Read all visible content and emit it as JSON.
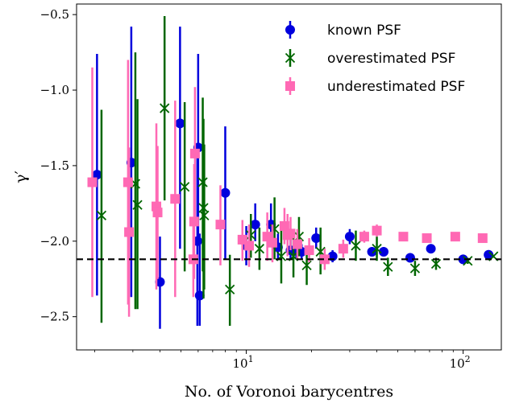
{
  "chart_data": {
    "type": "scatter",
    "title": "",
    "xlabel": "No. of Voronoi barycentres",
    "ylabel": "γ′",
    "xscale": "log",
    "xlim": [
      1.65,
      150
    ],
    "ylim": [
      -2.72,
      -0.43
    ],
    "yticks": [
      {
        "value": -0.5,
        "label": "−0.5"
      },
      {
        "value": -1.0,
        "label": "−1.0"
      },
      {
        "value": -1.5,
        "label": "−1.5"
      },
      {
        "value": -2.0,
        "label": "−2.0"
      },
      {
        "value": -2.5,
        "label": "−2.5"
      }
    ],
    "xticks": [
      {
        "value": 10,
        "base": "10",
        "exp": "1"
      },
      {
        "value": 100,
        "base": "10",
        "exp": "2"
      }
    ],
    "reference_line": {
      "y": -2.12,
      "style": "dashed",
      "color": "#000000"
    },
    "legend": {
      "position": "top-right"
    },
    "grid": false,
    "series": [
      {
        "name": "known PSF",
        "marker": "circle",
        "color": "#0000dd",
        "points": [
          {
            "x": 2.05,
            "y": -1.56,
            "lo": -2.36,
            "hi": -0.76
          },
          {
            "x": 2.95,
            "y": -1.48,
            "lo": -2.37,
            "hi": -0.58
          },
          {
            "x": 4.0,
            "y": -2.27,
            "lo": -2.58,
            "hi": -1.97
          },
          {
            "x": 4.95,
            "y": -1.22,
            "lo": -2.05,
            "hi": -0.58
          },
          {
            "x": 5.95,
            "y": -2.0,
            "lo": -2.56,
            "hi": -1.44
          },
          {
            "x": 6.0,
            "y": -1.38,
            "lo": -2.02,
            "hi": -0.76
          },
          {
            "x": 6.1,
            "y": -2.36,
            "lo": -2.56,
            "hi": -1.95
          },
          {
            "x": 8.0,
            "y": -1.68,
            "lo": -2.12,
            "hi": -1.24
          },
          {
            "x": 10.0,
            "y": -2.03,
            "lo": -2.16,
            "hi": -1.9
          },
          {
            "x": 11.0,
            "y": -1.89,
            "lo": -2.0,
            "hi": -1.75
          },
          {
            "x": 13.0,
            "y": -1.89,
            "lo": -2.0,
            "hi": -1.75
          },
          {
            "x": 14.0,
            "y": -2.04,
            "lo": -2.12,
            "hi": -1.95
          },
          {
            "x": 16.0,
            "y": -2.06,
            "lo": -2.12,
            "hi": -1.99
          },
          {
            "x": 17.0,
            "y": -2.06,
            "lo": -2.12,
            "hi": -1.99
          },
          {
            "x": 18.0,
            "y": -2.07,
            "lo": -2.12,
            "hi": -2.02
          },
          {
            "x": 21.0,
            "y": -1.98,
            "lo": -2.05,
            "hi": -1.91
          },
          {
            "x": 25.0,
            "y": -2.1,
            "lo": -2.14,
            "hi": -2.06
          },
          {
            "x": 30.0,
            "y": -1.97,
            "lo": -2.02,
            "hi": -1.92
          },
          {
            "x": 38.0,
            "y": -2.07,
            "lo": -2.1,
            "hi": -2.04
          },
          {
            "x": 43.0,
            "y": -2.07,
            "lo": -2.1,
            "hi": -2.04
          },
          {
            "x": 57.0,
            "y": -2.11,
            "lo": -2.13,
            "hi": -2.09
          },
          {
            "x": 71.0,
            "y": -2.05,
            "lo": -2.08,
            "hi": -2.02
          },
          {
            "x": 100.0,
            "y": -2.12,
            "lo": -2.13,
            "hi": -2.11
          },
          {
            "x": 131.0,
            "y": -2.09,
            "lo": -2.1,
            "hi": -2.08
          }
        ]
      },
      {
        "name": "overestimated PSF",
        "marker": "x",
        "color": "#006600",
        "points": [
          {
            "x": 2.15,
            "y": -1.83,
            "lo": -2.54,
            "hi": -1.13
          },
          {
            "x": 3.08,
            "y": -1.62,
            "lo": -2.45,
            "hi": -0.75
          },
          {
            "x": 3.15,
            "y": -1.76,
            "lo": -2.45,
            "hi": -1.06
          },
          {
            "x": 4.2,
            "y": -1.12,
            "lo": -1.73,
            "hi": -0.51
          },
          {
            "x": 5.2,
            "y": -1.64,
            "lo": -2.2,
            "hi": -1.08
          },
          {
            "x": 6.3,
            "y": -1.61,
            "lo": -2.2,
            "hi": -1.05
          },
          {
            "x": 6.35,
            "y": -1.78,
            "lo": -2.38,
            "hi": -1.19
          },
          {
            "x": 6.4,
            "y": -1.83,
            "lo": -2.32,
            "hi": -1.36
          },
          {
            "x": 8.4,
            "y": -2.32,
            "lo": -2.56,
            "hi": -2.09
          },
          {
            "x": 10.5,
            "y": -1.96,
            "lo": -2.11,
            "hi": -1.82
          },
          {
            "x": 11.5,
            "y": -2.05,
            "lo": -2.19,
            "hi": -1.91
          },
          {
            "x": 13.5,
            "y": -1.92,
            "lo": -2.12,
            "hi": -1.71
          },
          {
            "x": 14.5,
            "y": -2.1,
            "lo": -2.28,
            "hi": -1.92
          },
          {
            "x": 16.5,
            "y": -2.1,
            "lo": -2.24,
            "hi": -1.97
          },
          {
            "x": 17.5,
            "y": -1.97,
            "lo": -2.1,
            "hi": -1.84
          },
          {
            "x": 19.0,
            "y": -2.16,
            "lo": -2.29,
            "hi": -2.03
          },
          {
            "x": 22.0,
            "y": -2.07,
            "lo": -2.22,
            "hi": -1.91
          },
          {
            "x": 32.0,
            "y": -2.03,
            "lo": -2.13,
            "hi": -1.93
          },
          {
            "x": 40.0,
            "y": -2.05,
            "lo": -2.13,
            "hi": -1.97
          },
          {
            "x": 45.0,
            "y": -2.17,
            "lo": -2.23,
            "hi": -2.11
          },
          {
            "x": 60.0,
            "y": -2.18,
            "lo": -2.23,
            "hi": -2.13
          },
          {
            "x": 75.0,
            "y": -2.15,
            "lo": -2.19,
            "hi": -2.11
          },
          {
            "x": 105.0,
            "y": -2.13,
            "lo": -2.15,
            "hi": -2.11
          },
          {
            "x": 138.0,
            "y": -2.1,
            "lo": -2.11,
            "hi": -2.09
          }
        ]
      },
      {
        "name": "underestimated PSF",
        "marker": "square",
        "color": "#ff69b4",
        "points": [
          {
            "x": 1.95,
            "y": -1.61,
            "lo": -2.37,
            "hi": -0.85
          },
          {
            "x": 2.85,
            "y": -1.61,
            "lo": -2.42,
            "hi": -0.8
          },
          {
            "x": 2.88,
            "y": -1.94,
            "lo": -2.5,
            "hi": -1.38
          },
          {
            "x": 3.85,
            "y": -1.77,
            "lo": -2.32,
            "hi": -1.22
          },
          {
            "x": 3.9,
            "y": -1.81,
            "lo": -2.25,
            "hi": -1.37
          },
          {
            "x": 4.7,
            "y": -1.72,
            "lo": -2.37,
            "hi": -1.07
          },
          {
            "x": 5.7,
            "y": -2.12,
            "lo": -2.37,
            "hi": -1.86
          },
          {
            "x": 5.75,
            "y": -1.87,
            "lo": -2.25,
            "hi": -1.49
          },
          {
            "x": 5.8,
            "y": -1.42,
            "lo": -1.86,
            "hi": -0.98
          },
          {
            "x": 7.6,
            "y": -1.89,
            "lo": -2.16,
            "hi": -1.63
          },
          {
            "x": 9.6,
            "y": -1.99,
            "lo": -2.13,
            "hi": -1.86
          },
          {
            "x": 10.3,
            "y": -2.03,
            "lo": -2.17,
            "hi": -1.89
          },
          {
            "x": 12.5,
            "y": -1.97,
            "lo": -2.13,
            "hi": -1.81
          },
          {
            "x": 13.2,
            "y": -2.01,
            "lo": -2.14,
            "hi": -1.89
          },
          {
            "x": 15.0,
            "y": -1.9,
            "lo": -2.02,
            "hi": -1.78
          },
          {
            "x": 15.5,
            "y": -1.96,
            "lo": -2.1,
            "hi": -1.82
          },
          {
            "x": 16.0,
            "y": -1.95,
            "lo": -2.06,
            "hi": -1.84
          },
          {
            "x": 17.2,
            "y": -2.02,
            "lo": -2.12,
            "hi": -1.92
          },
          {
            "x": 19.5,
            "y": -2.06,
            "lo": -2.14,
            "hi": -1.98
          },
          {
            "x": 23.0,
            "y": -2.12,
            "lo": -2.19,
            "hi": -2.05
          },
          {
            "x": 28.0,
            "y": -2.05,
            "lo": -2.11,
            "hi": -1.99
          },
          {
            "x": 35.0,
            "y": -1.97,
            "lo": -2.01,
            "hi": -1.93
          },
          {
            "x": 40.0,
            "y": -1.93,
            "lo": -1.97,
            "hi": -1.89
          },
          {
            "x": 53.0,
            "y": -1.97,
            "lo": -2.0,
            "hi": -1.94
          },
          {
            "x": 68.0,
            "y": -1.98,
            "lo": -2.01,
            "hi": -1.95
          },
          {
            "x": 92.0,
            "y": -1.97,
            "lo": -1.99,
            "hi": -1.95
          },
          {
            "x": 123.0,
            "y": -1.98,
            "lo": -2.0,
            "hi": -1.96
          }
        ]
      }
    ]
  }
}
